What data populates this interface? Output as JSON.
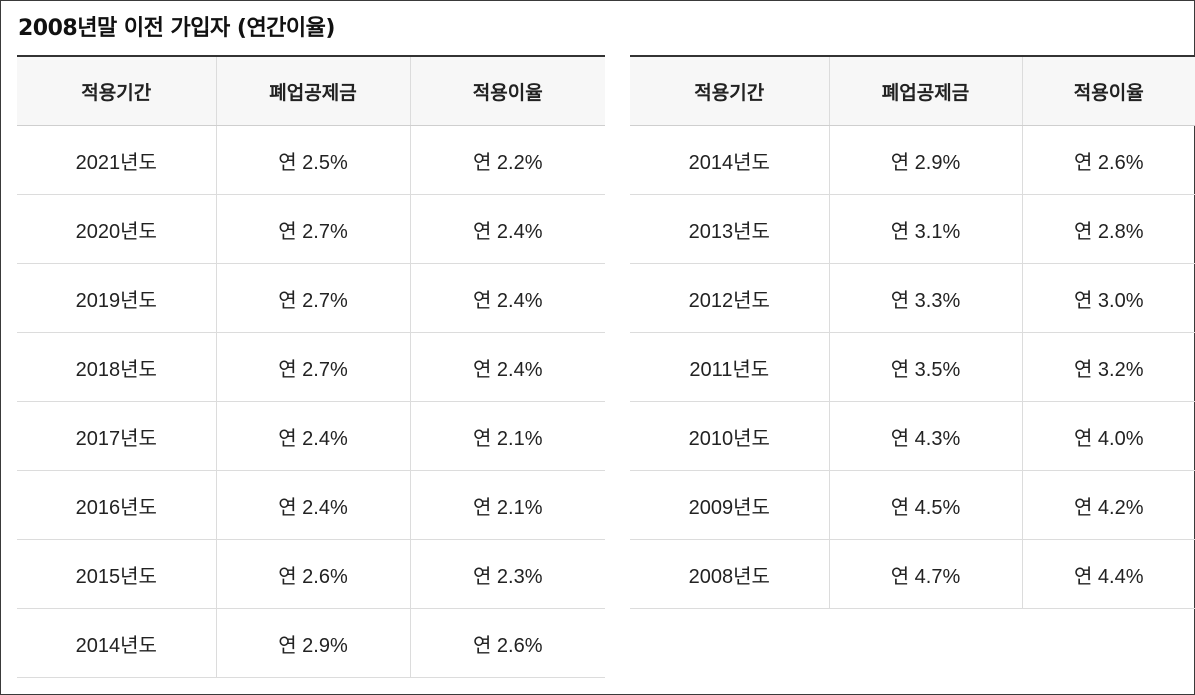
{
  "title": "2008년말 이전 가입자 (연간이율)",
  "headers": [
    "적용기간",
    "폐업공제금",
    "적용이율"
  ],
  "left_rows": [
    [
      "2021년도",
      "연 2.5%",
      "연 2.2%"
    ],
    [
      "2020년도",
      "연 2.7%",
      "연 2.4%"
    ],
    [
      "2019년도",
      "연 2.7%",
      "연 2.4%"
    ],
    [
      "2018년도",
      "연 2.7%",
      "연 2.4%"
    ],
    [
      "2017년도",
      "연 2.4%",
      "연 2.1%"
    ],
    [
      "2016년도",
      "연 2.4%",
      "연 2.1%"
    ],
    [
      "2015년도",
      "연 2.6%",
      "연 2.3%"
    ],
    [
      "2014년도",
      "연 2.9%",
      "연 2.6%"
    ]
  ],
  "right_rows": [
    [
      "2014년도",
      "연 2.9%",
      "연 2.6%"
    ],
    [
      "2013년도",
      "연 3.1%",
      "연 2.8%"
    ],
    [
      "2012년도",
      "연 3.3%",
      "연 3.0%"
    ],
    [
      "2011년도",
      "연 3.5%",
      "연 3.2%"
    ],
    [
      "2010년도",
      "연 4.3%",
      "연 4.0%"
    ],
    [
      "2009년도",
      "연 4.5%",
      "연 4.2%"
    ],
    [
      "2008년도",
      "연 4.7%",
      "연 4.4%"
    ]
  ]
}
